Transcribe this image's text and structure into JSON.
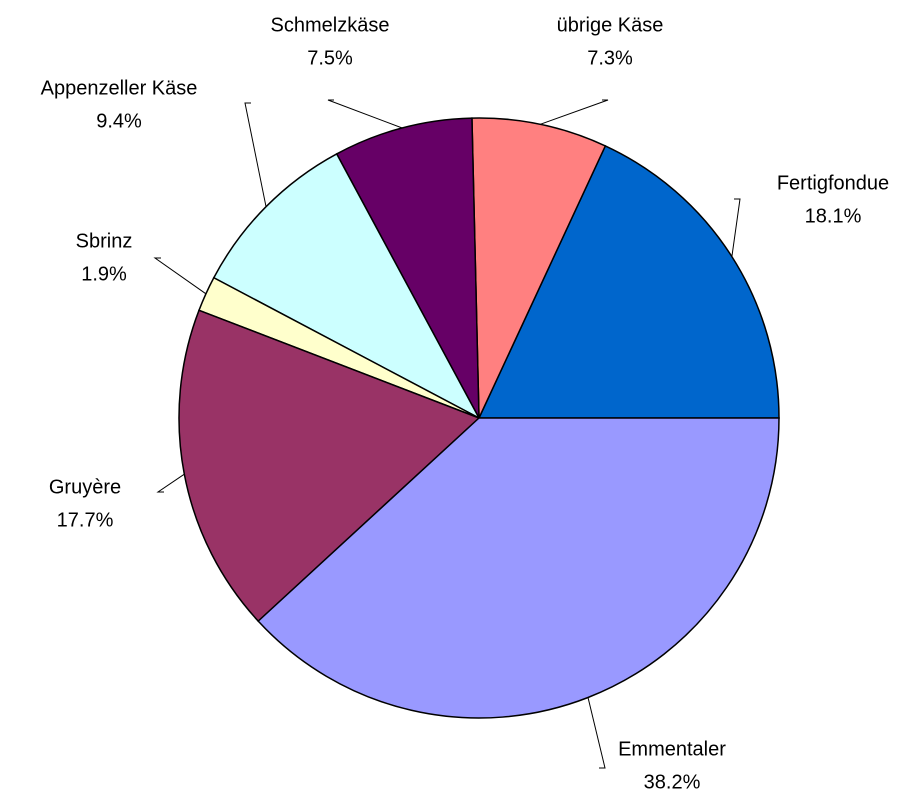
{
  "chart_data": {
    "type": "pie",
    "categories": [
      "Fertigfondue",
      "übrige Käse",
      "Schmelzkäse",
      "Appenzeller Käse",
      "Sbrinz",
      "Gruyère",
      "Emmentaler"
    ],
    "values": [
      18.1,
      7.3,
      7.5,
      9.4,
      1.9,
      17.7,
      38.2
    ],
    "value_labels": [
      "18.1%",
      "7.3%",
      "7.5%",
      "9.4%",
      "1.9%",
      "17.7%",
      "38.2%"
    ],
    "colors": [
      "#0066cc",
      "#ff8080",
      "#660066",
      "#ccffff",
      "#ffffcc",
      "#993366",
      "#9999ff"
    ]
  }
}
